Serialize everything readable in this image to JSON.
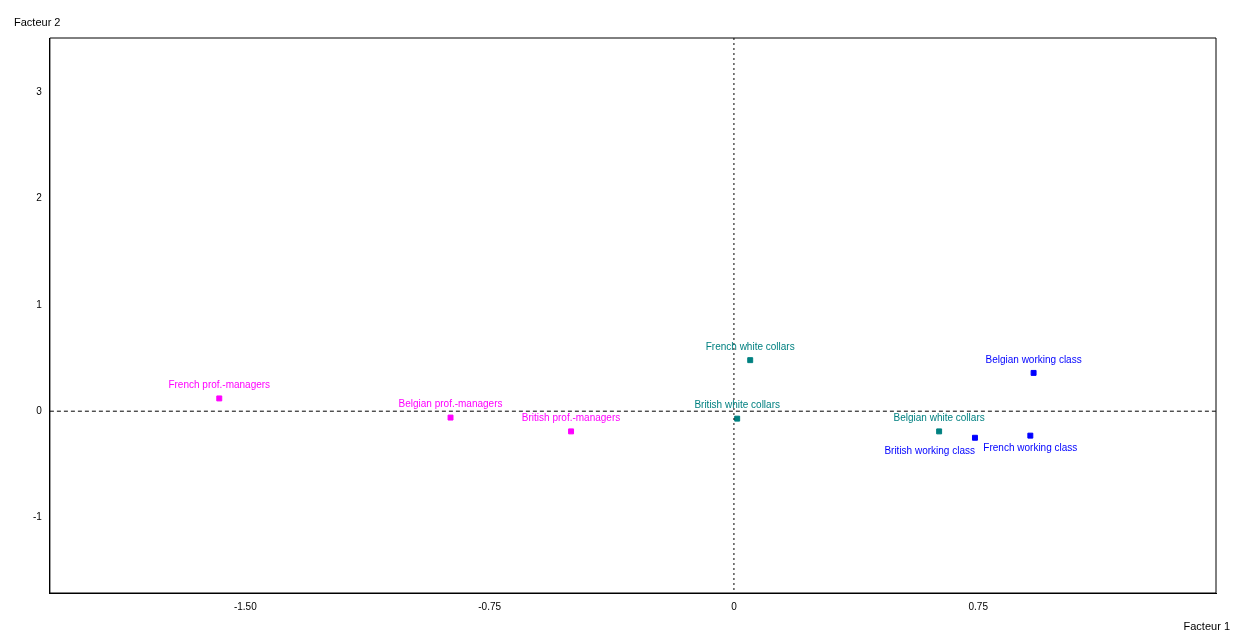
{
  "chart_data": {
    "type": "scatter",
    "xlabel": "Facteur 1",
    "ylabel": "Facteur 2",
    "xlim": [
      -2.1,
      1.48
    ],
    "ylim": [
      -1.71,
      3.51
    ],
    "xticks": [
      {
        "value": -1.5,
        "label": "-1.50"
      },
      -0.75,
      0,
      0.75
    ],
    "yticks": [
      -1,
      0,
      1,
      2,
      3
    ],
    "grid": false,
    "legend": false,
    "marker": "square",
    "ref_lines": [
      {
        "axis": "x",
        "value": 0,
        "color": "#000000",
        "line_style": "dotted"
      },
      {
        "axis": "y",
        "value": 0,
        "color": "#000000",
        "line_style": "dashed"
      }
    ],
    "series": [
      {
        "color": "#ff00ff",
        "x": [
          -1.58,
          -0.87,
          -0.5
        ],
        "values": [
          0.12,
          -0.06,
          -0.19
        ]
      },
      {
        "color": "#008080",
        "x": [
          0.05,
          0.01,
          0.63
        ],
        "values": [
          0.48,
          -0.07,
          -0.19
        ]
      },
      {
        "color": "#0000ff",
        "x": [
          0.92,
          0.91,
          0.74
        ],
        "values": [
          0.36,
          -0.23,
          -0.25
        ]
      }
    ],
    "annotations": [
      {
        "text": "French prof.-managers",
        "x": -1.58,
        "y": 0.12
      },
      {
        "text": "Belgian prof.-managers",
        "x": -0.87,
        "y": -0.06
      },
      {
        "text": "British prof.-managers",
        "x": -0.5,
        "y": -0.19
      },
      {
        "text": "French white collars",
        "x": 0.05,
        "y": 0.48
      },
      {
        "text": "British white collars",
        "x": 0.01,
        "y": -0.07
      },
      {
        "text": "Belgian white collars",
        "x": 0.63,
        "y": -0.19
      },
      {
        "text": "Belgian working class",
        "x": 0.92,
        "y": 0.36
      },
      {
        "text": "French working class",
        "x": 0.91,
        "y": -0.23
      },
      {
        "text": "British working class",
        "x": 0.74,
        "y": -0.25
      }
    ]
  }
}
